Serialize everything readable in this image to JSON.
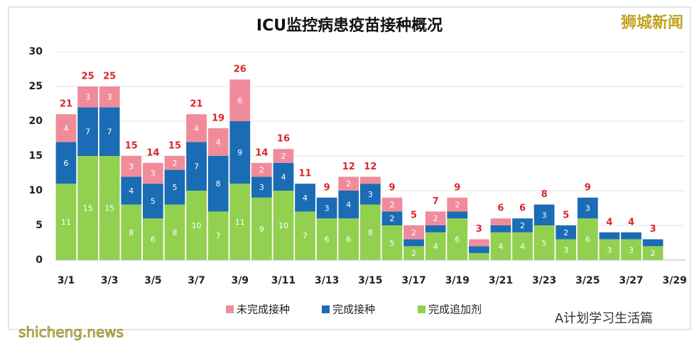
{
  "chart_data": {
    "type": "stacked_bar",
    "title": "ICU监控病患疫苗接种概况",
    "categories": [
      "3/1",
      null,
      "3/3",
      null,
      "3/5",
      null,
      "3/7",
      null,
      "3/9",
      null,
      "3/11",
      null,
      "3/13",
      null,
      "3/15",
      null,
      "3/17",
      null,
      "3/19",
      null,
      "3/21",
      null,
      "3/23",
      null,
      "3/25",
      null,
      "3/27",
      null,
      "3/29"
    ],
    "series": [
      {
        "name": "完成追加剂",
        "color": "#92d050",
        "values": [
          11,
          15,
          15,
          8,
          6,
          8,
          10,
          7,
          11,
          9,
          10,
          7,
          6,
          6,
          8,
          5,
          2,
          4,
          6,
          1,
          4,
          4,
          5,
          3,
          6,
          3,
          3,
          2,
          null
        ]
      },
      {
        "name": "完成接种",
        "color": "#1a6cb5",
        "values": [
          6,
          7,
          7,
          4,
          5,
          5,
          7,
          8,
          9,
          3,
          4,
          4,
          3,
          4,
          3,
          2,
          1,
          1,
          1,
          1,
          1,
          2,
          3,
          2,
          3,
          1,
          1,
          1,
          null
        ]
      },
      {
        "name": "未完成接种",
        "color": "#f08c9a",
        "values": [
          4,
          3,
          3,
          3,
          3,
          2,
          4,
          4,
          6,
          2,
          2,
          0,
          0,
          2,
          1,
          2,
          2,
          2,
          2,
          1,
          1,
          0,
          0,
          0,
          0,
          0,
          0,
          0,
          null
        ]
      }
    ],
    "totals": [
      21,
      25,
      25,
      15,
      14,
      15,
      21,
      19,
      26,
      14,
      16,
      11,
      9,
      12,
      12,
      9,
      5,
      7,
      9,
      3,
      6,
      6,
      8,
      5,
      9,
      4,
      4,
      3,
      null
    ],
    "ylim": [
      0,
      30
    ],
    "yticks": [
      0,
      5,
      10,
      15,
      20,
      25,
      30
    ],
    "grid": true,
    "legend_order": [
      2,
      1,
      0
    ]
  },
  "watermarks": {
    "top_right": "狮城新闻",
    "bottom_left": "shicheng.news",
    "bottom_right": "A计划学习生活篇"
  }
}
